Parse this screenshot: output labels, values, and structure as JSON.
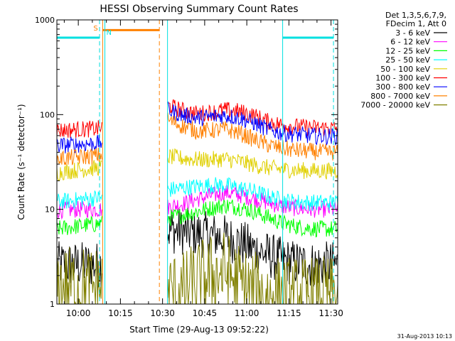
{
  "chart_data": {
    "type": "line",
    "title": "HESSI Observing Summary Count Rates",
    "xlabel": "Start Time (29-Aug-13 09:52:22)",
    "ylabel": "Count Rate (s⁻¹ detector⁻¹)",
    "y_scale": "log",
    "ylim": [
      1,
      1000
    ],
    "xlim_minutes_since_start": [
      0,
      100
    ],
    "y_ticks": [
      {
        "value": 1,
        "label": "1"
      },
      {
        "value": 10,
        "label": "10"
      },
      {
        "value": 100,
        "label": "100"
      },
      {
        "value": 1000,
        "label": "1000"
      }
    ],
    "x_ticks": [
      {
        "label": "10:00",
        "minutes": 7.63
      },
      {
        "label": "10:15",
        "minutes": 22.63
      },
      {
        "label": "10:30",
        "minutes": 37.63
      },
      {
        "label": "10:45",
        "minutes": 52.63
      },
      {
        "label": "11:00",
        "minutes": 67.63
      },
      {
        "label": "11:15",
        "minutes": 82.63
      },
      {
        "label": "11:30",
        "minutes": 97.63
      }
    ],
    "legend_header": [
      "Det 1,3,5,6,7,9,",
      "FDecim 1, Att 0"
    ],
    "legend_position": "right",
    "gaps_minutes": [
      [
        16,
        39.5
      ]
    ],
    "markers": [
      {
        "label": "S",
        "minutes": 16.3,
        "color": "#ff8000"
      },
      {
        "label": "N",
        "minutes": 17.1,
        "color": "#00e0e0"
      }
    ],
    "vertical_lines": [
      {
        "minutes": 15.2,
        "color": "#00e0e0",
        "style": "dashed"
      },
      {
        "minutes": 16.3,
        "color": "#ff8000",
        "style": "solid"
      },
      {
        "minutes": 17.1,
        "color": "#00e0e0",
        "style": "solid"
      },
      {
        "minutes": 36.5,
        "color": "#ff8000",
        "style": "dashed"
      },
      {
        "minutes": 39.4,
        "color": "#00e0e0",
        "style": "solid"
      },
      {
        "minutes": 80.4,
        "color": "#00e0e0",
        "style": "solid"
      },
      {
        "minutes": 98.5,
        "color": "#00e0e0",
        "style": "dashed"
      }
    ],
    "flag_bars": [
      {
        "color": "#00e0e0",
        "from": 0,
        "to": 15.2,
        "value": 650
      },
      {
        "color": "#ff8000",
        "from": 16.3,
        "to": 36.5,
        "value": 780
      },
      {
        "color": "#00e0e0",
        "from": 80.4,
        "to": 98.5,
        "value": 650
      }
    ],
    "series": [
      {
        "name": "3 - 6 keV",
        "color": "#000000",
        "points": [
          [
            0,
            2.6
          ],
          [
            5,
            2.6
          ],
          [
            10,
            2.6
          ],
          [
            15,
            2.6
          ],
          [
            39.5,
            6.0
          ],
          [
            45,
            5.8
          ],
          [
            50,
            5.5
          ],
          [
            55,
            5.3
          ],
          [
            60,
            5.0
          ],
          [
            65,
            4.5
          ],
          [
            70,
            3.8
          ],
          [
            75,
            3.3
          ],
          [
            80,
            2.9
          ],
          [
            85,
            2.7
          ],
          [
            90,
            2.6
          ],
          [
            95,
            2.6
          ],
          [
            100,
            2.6
          ]
        ]
      },
      {
        "name": "6 - 12 keV",
        "color": "#ff00ff",
        "points": [
          [
            0,
            9.8
          ],
          [
            5,
            9.9
          ],
          [
            10,
            10.0
          ],
          [
            15,
            10.0
          ],
          [
            39.5,
            10.6
          ],
          [
            45,
            11.5
          ],
          [
            50,
            12.8
          ],
          [
            55,
            14.0
          ],
          [
            60,
            15.0
          ],
          [
            65,
            14.2
          ],
          [
            70,
            13.0
          ],
          [
            75,
            11.8
          ],
          [
            80,
            10.8
          ],
          [
            85,
            10.3
          ],
          [
            90,
            10.0
          ],
          [
            95,
            10.0
          ],
          [
            100,
            10.0
          ]
        ]
      },
      {
        "name": "12 - 25 keV",
        "color": "#00ff00",
        "points": [
          [
            0,
            6.2
          ],
          [
            5,
            6.5
          ],
          [
            10,
            6.8
          ],
          [
            15,
            7.0
          ],
          [
            39.5,
            8.0
          ],
          [
            45,
            8.8
          ],
          [
            50,
            9.5
          ],
          [
            55,
            10.3
          ],
          [
            60,
            11.0
          ],
          [
            65,
            10.5
          ],
          [
            70,
            9.5
          ],
          [
            75,
            8.3
          ],
          [
            80,
            7.2
          ],
          [
            85,
            6.6
          ],
          [
            90,
            6.3
          ],
          [
            95,
            6.2
          ],
          [
            100,
            6.2
          ]
        ]
      },
      {
        "name": "25 - 50 keV",
        "color": "#00ffff",
        "points": [
          [
            0,
            12.0
          ],
          [
            5,
            12.3
          ],
          [
            10,
            12.8
          ],
          [
            15,
            13.3
          ],
          [
            39.5,
            16.0
          ],
          [
            45,
            16.8
          ],
          [
            50,
            17.5
          ],
          [
            55,
            18.0
          ],
          [
            60,
            18.0
          ],
          [
            65,
            16.8
          ],
          [
            70,
            15.5
          ],
          [
            75,
            13.8
          ],
          [
            80,
            12.5
          ],
          [
            85,
            12.0
          ],
          [
            90,
            11.8
          ],
          [
            95,
            11.8
          ],
          [
            100,
            11.8
          ]
        ]
      },
      {
        "name": "50 - 100 keV",
        "color": "#e0d000",
        "points": [
          [
            0,
            24.5
          ],
          [
            5,
            25.5
          ],
          [
            10,
            26.5
          ],
          [
            15,
            27.5
          ],
          [
            39.5,
            36.0
          ],
          [
            45,
            34.5
          ],
          [
            50,
            33.5
          ],
          [
            55,
            33.5
          ],
          [
            60,
            34.0
          ],
          [
            65,
            32.0
          ],
          [
            70,
            29.5
          ],
          [
            75,
            27.5
          ],
          [
            80,
            26.5
          ],
          [
            85,
            26.0
          ],
          [
            90,
            25.5
          ],
          [
            95,
            25.5
          ],
          [
            100,
            25.5
          ]
        ]
      },
      {
        "name": "100 - 300 keV",
        "color": "#ff0000",
        "points": [
          [
            0,
            68
          ],
          [
            5,
            69
          ],
          [
            10,
            70
          ],
          [
            15,
            71
          ],
          [
            39.5,
            125
          ],
          [
            45,
            110
          ],
          [
            50,
            102
          ],
          [
            55,
            106
          ],
          [
            60,
            112
          ],
          [
            65,
            108
          ],
          [
            70,
            98
          ],
          [
            75,
            85
          ],
          [
            80,
            78
          ],
          [
            85,
            75
          ],
          [
            90,
            73
          ],
          [
            95,
            72
          ],
          [
            100,
            72
          ]
        ]
      },
      {
        "name": "300 - 800 keV",
        "color": "#0000ff",
        "points": [
          [
            0,
            47
          ],
          [
            5,
            48
          ],
          [
            10,
            49
          ],
          [
            15,
            50
          ],
          [
            39.5,
            112
          ],
          [
            45,
            98
          ],
          [
            50,
            92
          ],
          [
            55,
            95
          ],
          [
            60,
            98
          ],
          [
            65,
            92
          ],
          [
            70,
            82
          ],
          [
            75,
            70
          ],
          [
            80,
            64
          ],
          [
            85,
            62
          ],
          [
            90,
            60
          ],
          [
            95,
            59
          ],
          [
            100,
            59
          ]
        ]
      },
      {
        "name": "800 - 7000 keV",
        "color": "#ff8000",
        "points": [
          [
            0,
            34
          ],
          [
            5,
            35
          ],
          [
            10,
            36
          ],
          [
            15,
            37
          ],
          [
            39.5,
            88
          ],
          [
            45,
            75
          ],
          [
            50,
            67
          ],
          [
            55,
            68
          ],
          [
            60,
            70
          ],
          [
            65,
            64
          ],
          [
            70,
            55
          ],
          [
            75,
            48
          ],
          [
            80,
            44
          ],
          [
            85,
            42
          ],
          [
            90,
            41
          ],
          [
            95,
            40
          ],
          [
            100,
            40
          ]
        ]
      },
      {
        "name": "7000 - 20000 keV",
        "color": "#808000",
        "points": [
          [
            0,
            1.5
          ],
          [
            5,
            1.5
          ],
          [
            10,
            1.5
          ],
          [
            15,
            1.5
          ],
          [
            39.5,
            1.3
          ],
          [
            45,
            1.3
          ],
          [
            50,
            1.7
          ],
          [
            55,
            2.0
          ],
          [
            60,
            2.2
          ],
          [
            65,
            1.6
          ],
          [
            70,
            1.3
          ],
          [
            75,
            1.2
          ],
          [
            80,
            1.15
          ],
          [
            85,
            1.15
          ],
          [
            90,
            1.15
          ],
          [
            95,
            1.15
          ],
          [
            100,
            1.15
          ]
        ]
      }
    ],
    "footer_date": "31-Aug-2013 10:13"
  }
}
